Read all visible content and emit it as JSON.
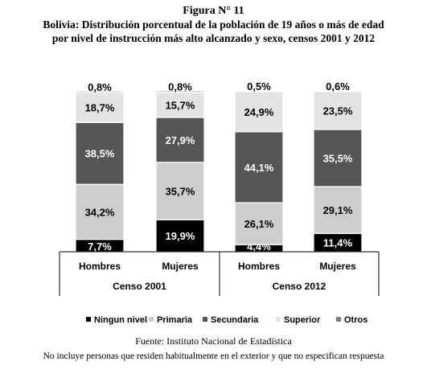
{
  "figure_number": "Figura N° 11",
  "title_line1": "Bolivia: Distribución porcentual de la población de 19 años o más de edad",
  "title_line2": "por nivel de instrucción más alto alcanzado y sexo, censos 2001 y 2012",
  "source": "Fuente: Instituto Nacional de Estadística",
  "note": "No incluye personas que residen habitualmente en el exterior y que no especifican respuesta",
  "chart_data": {
    "type": "bar",
    "stacked": true,
    "percent": true,
    "categories": [
      "Hombres",
      "Mujeres",
      "Hombres",
      "Mujeres"
    ],
    "groups": [
      {
        "label": "Censo 2001",
        "categories": [
          "Hombres",
          "Mujeres"
        ]
      },
      {
        "label": "Censo 2012",
        "categories": [
          "Hombres",
          "Mujeres"
        ]
      }
    ],
    "series": [
      {
        "name": "Ningun nivel",
        "color": "#000000",
        "label_color": "#ffffff",
        "values": [
          7.7,
          19.9,
          4.4,
          11.4
        ],
        "labels": [
          "7,7%",
          "19,9%",
          "4,4%",
          "11,4%"
        ]
      },
      {
        "name": "Primaria",
        "color": "#cdcdcd",
        "label_color": "#000000",
        "values": [
          34.2,
          35.7,
          26.1,
          29.1
        ],
        "labels": [
          "34,2%",
          "35,7%",
          "26,1%",
          "29,1%"
        ]
      },
      {
        "name": "Secundaria",
        "color": "#555555",
        "label_color": "#ffffff",
        "values": [
          38.5,
          27.9,
          44.1,
          35.5
        ],
        "labels": [
          "38,5%",
          "27,9%",
          "44,1%",
          "35,5%"
        ]
      },
      {
        "name": "Superior",
        "color": "#e3e3e3",
        "label_color": "#000000",
        "values": [
          18.7,
          15.7,
          24.9,
          23.5
        ],
        "labels": [
          "18,7%",
          "15,7%",
          "24,9%",
          "23,5%"
        ]
      },
      {
        "name": "Otros",
        "color": "#7f7f7f",
        "label_color": "#000000",
        "values": [
          0.8,
          0.8,
          0.5,
          0.6
        ],
        "labels": [
          "0,8%",
          "0,8%",
          "0,5%",
          "0,6%"
        ]
      }
    ],
    "ylim": [
      0,
      100
    ],
    "grid": false,
    "legend_position": "bottom"
  }
}
